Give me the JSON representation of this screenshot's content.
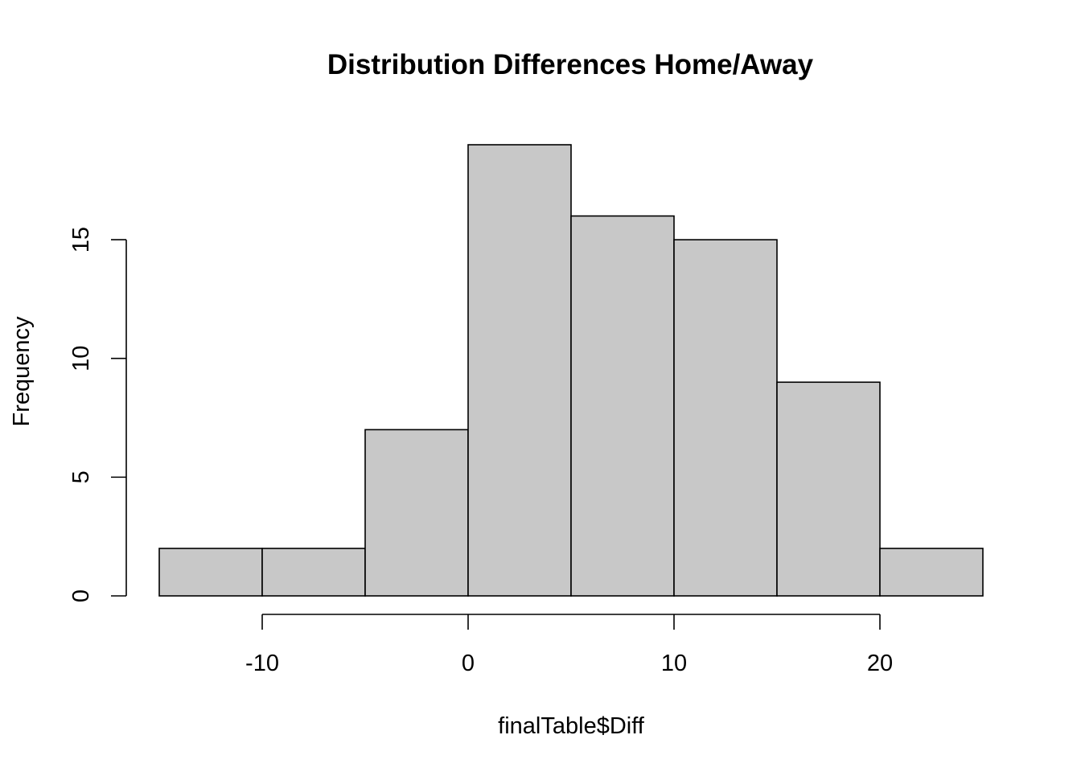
{
  "chart_data": {
    "type": "bar",
    "histogram": true,
    "title": "Distribution Differences Home/Away",
    "xlabel": "finalTable$Diff",
    "ylabel": "Frequency",
    "bin_edges": [
      -15,
      -10,
      -5,
      0,
      5,
      10,
      15,
      20,
      25
    ],
    "values": [
      2,
      2,
      7,
      19,
      16,
      15,
      9,
      2
    ],
    "xlim": [
      -15,
      25
    ],
    "ylim": [
      0,
      19
    ],
    "x_ticks": [
      -10,
      0,
      10,
      20
    ],
    "x_tick_labels": [
      "-10",
      "0",
      "10",
      "20"
    ],
    "y_ticks": [
      0,
      5,
      10,
      15
    ],
    "y_tick_labels": [
      "0",
      "5",
      "10",
      "15"
    ],
    "bar_color": "#c8c8c8",
    "grid": false,
    "legend": false
  }
}
